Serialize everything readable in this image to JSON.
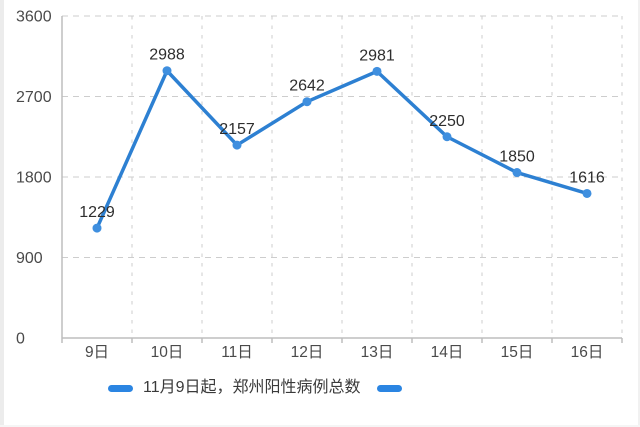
{
  "chart_data": {
    "type": "line",
    "categories": [
      "9日",
      "10日",
      "11日",
      "12日",
      "13日",
      "14日",
      "15日",
      "16日"
    ],
    "values": [
      1229,
      2988,
      2157,
      2642,
      2981,
      2250,
      1850,
      1616
    ],
    "series_name": "11月9日起，郑州阳性病例总数",
    "title": "",
    "xlabel": "",
    "ylabel": "",
    "ylim": [
      0,
      3600
    ],
    "yticks": [
      0,
      900,
      1800,
      2700,
      3600
    ],
    "grid": true,
    "legend_position": "bottom",
    "colors": {
      "line": "#2d80d2",
      "marker": "#3f8fdf",
      "data_label": "#2e2e2e",
      "axis_label": "#4a4a4a",
      "grid_line": "#cdcdcd",
      "axis_line": "#bdbdbd"
    }
  },
  "legend": {
    "label": "11月9日起，郑州阳性病例总数",
    "marker_color": "#2b85e2"
  }
}
